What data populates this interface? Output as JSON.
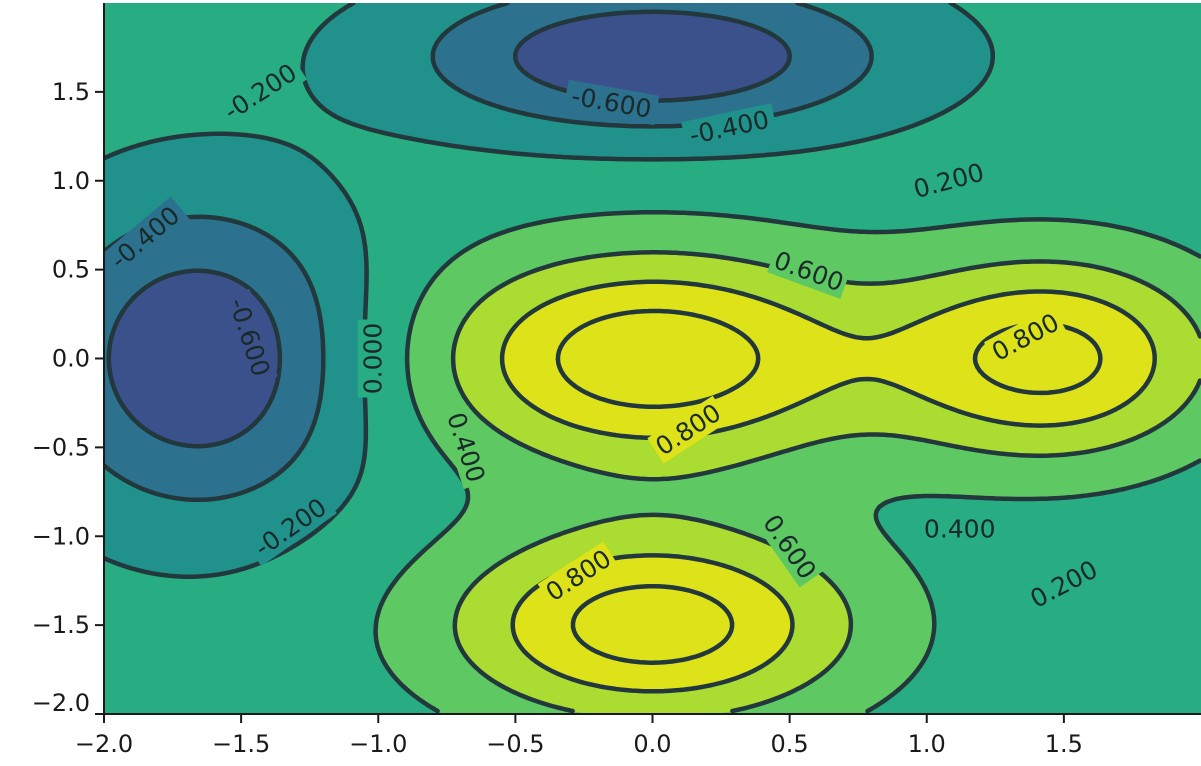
{
  "chart_data": {
    "type": "contour",
    "title": "",
    "xlabel": "",
    "ylabel": "",
    "xlim": [
      -2.0,
      2.0
    ],
    "ylim": [
      -2.0,
      2.0
    ],
    "xticks": [
      -2.0,
      -1.5,
      -1.0,
      -0.5,
      0.0,
      0.5,
      1.0,
      1.5
    ],
    "yticks": [
      -2.0,
      -1.5,
      -1.0,
      -0.5,
      0.0,
      0.5,
      1.0,
      1.5
    ],
    "xtick_labels": [
      "−2.0",
      "−1.5",
      "−1.0",
      "−0.5",
      "0.0",
      "0.5",
      "1.0",
      "1.5"
    ],
    "ytick_labels": [
      "−2.0",
      "−1.5",
      "−1.0",
      "−0.5",
      "0.0",
      "0.5",
      "1.0",
      "1.5"
    ],
    "colormap": "viridis",
    "filled": true,
    "grid": false,
    "negative_linestyle": "dashed",
    "levels": [
      -0.6,
      -0.4,
      -0.2,
      0.0,
      0.2,
      0.4,
      0.6,
      0.8
    ],
    "level_colors": [
      "#472d7b",
      "#3b518b",
      "#2c718e",
      "#21918c",
      "#27ad81",
      "#5ec962",
      "#aadc32",
      "#dde318"
    ],
    "function": {
      "baseline": 0.08,
      "gaussians": [
        {
          "cx": 0.0,
          "cy": 0.0,
          "amp": 0.88,
          "sx": 0.55,
          "sy": 0.42
        },
        {
          "cx": 0.0,
          "cy": -1.5,
          "amp": 0.84,
          "sx": 0.52,
          "sy": 0.38
        },
        {
          "cx": 1.45,
          "cy": 0.0,
          "amp": 0.78,
          "sx": 0.42,
          "sy": 0.4
        },
        {
          "cx": 0.0,
          "cy": 1.7,
          "amp": -0.68,
          "sx": 0.6,
          "sy": 0.3
        },
        {
          "cx": -1.65,
          "cy": 0.0,
          "amp": -0.68,
          "sx": 0.4,
          "sy": 0.6
        }
      ]
    },
    "contour_labels": [
      {
        "text": "0.800",
        "x": 0.13,
        "y": -0.4,
        "angle": -33
      },
      {
        "text": "0.800",
        "x": -0.27,
        "y": -1.22,
        "angle": -33
      },
      {
        "text": "0.800",
        "x": 1.36,
        "y": 0.12,
        "angle": -28
      },
      {
        "text": "0.600",
        "x": 0.57,
        "y": 0.49,
        "angle": 20
      },
      {
        "text": "0.600",
        "x": 0.5,
        "y": -1.06,
        "angle": 55
      },
      {
        "text": "0.400",
        "x": -0.68,
        "y": -0.5,
        "angle": 72
      },
      {
        "text": "0.400",
        "x": 1.12,
        "y": -0.96,
        "angle": 0
      },
      {
        "text": "0.200",
        "x": 1.08,
        "y": 1.0,
        "angle": -15
      },
      {
        "text": "0.200",
        "x": 1.5,
        "y": -1.27,
        "angle": -28
      },
      {
        "text": "0.000",
        "x": -1.02,
        "y": 0.0,
        "angle": -90
      },
      {
        "text": "-0.200",
        "x": -1.43,
        "y": 1.5,
        "angle": -33
      },
      {
        "text": "-0.200",
        "x": -1.32,
        "y": -0.95,
        "angle": -35
      },
      {
        "text": "-0.400",
        "x": -1.85,
        "y": 0.68,
        "angle": -40
      },
      {
        "text": "-0.400",
        "x": 0.28,
        "y": 1.3,
        "angle": -12
      },
      {
        "text": "-0.600",
        "x": -0.15,
        "y": 1.44,
        "angle": 10
      },
      {
        "text": "-0.600",
        "x": -1.47,
        "y": 0.12,
        "angle": 72
      }
    ]
  }
}
